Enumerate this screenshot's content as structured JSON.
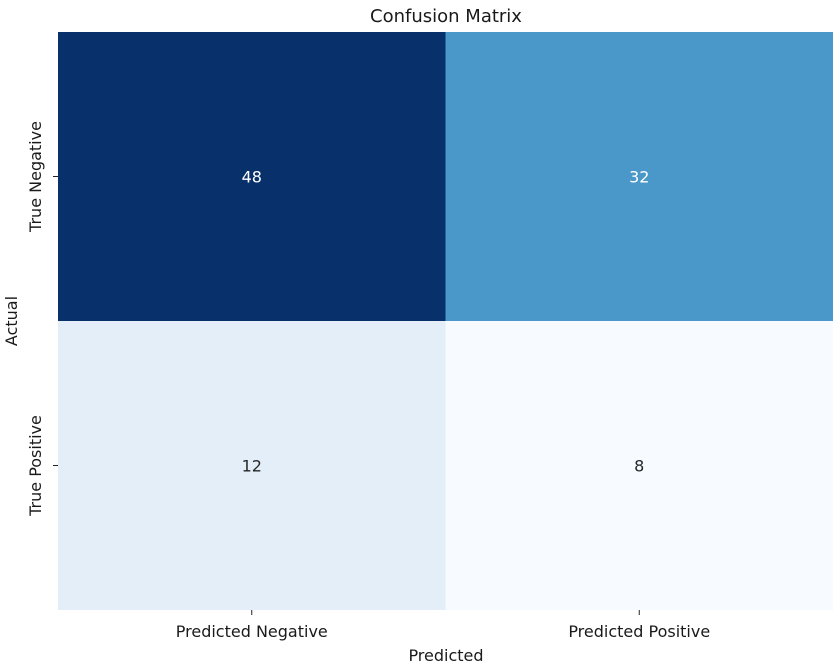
{
  "chart_data": {
    "type": "heatmap",
    "title": "Confusion Matrix",
    "xlabel": "Predicted",
    "ylabel": "Actual",
    "x_categories": [
      "Predicted Negative",
      "Predicted Positive"
    ],
    "y_categories": [
      "True Negative",
      "True Positive"
    ],
    "values": [
      [
        48,
        32
      ],
      [
        12,
        8
      ]
    ],
    "colormap": "Blues",
    "color_scale": [
      {
        "value": 8,
        "color": "#f7fbff"
      },
      {
        "value": 12,
        "color": "#e3eef9"
      },
      {
        "value": 32,
        "color": "#4a98c9"
      },
      {
        "value": 48,
        "color": "#08306b"
      }
    ],
    "text_colors": {
      "light": "#ffffff",
      "dark": "#262626"
    },
    "colorbar": false
  }
}
